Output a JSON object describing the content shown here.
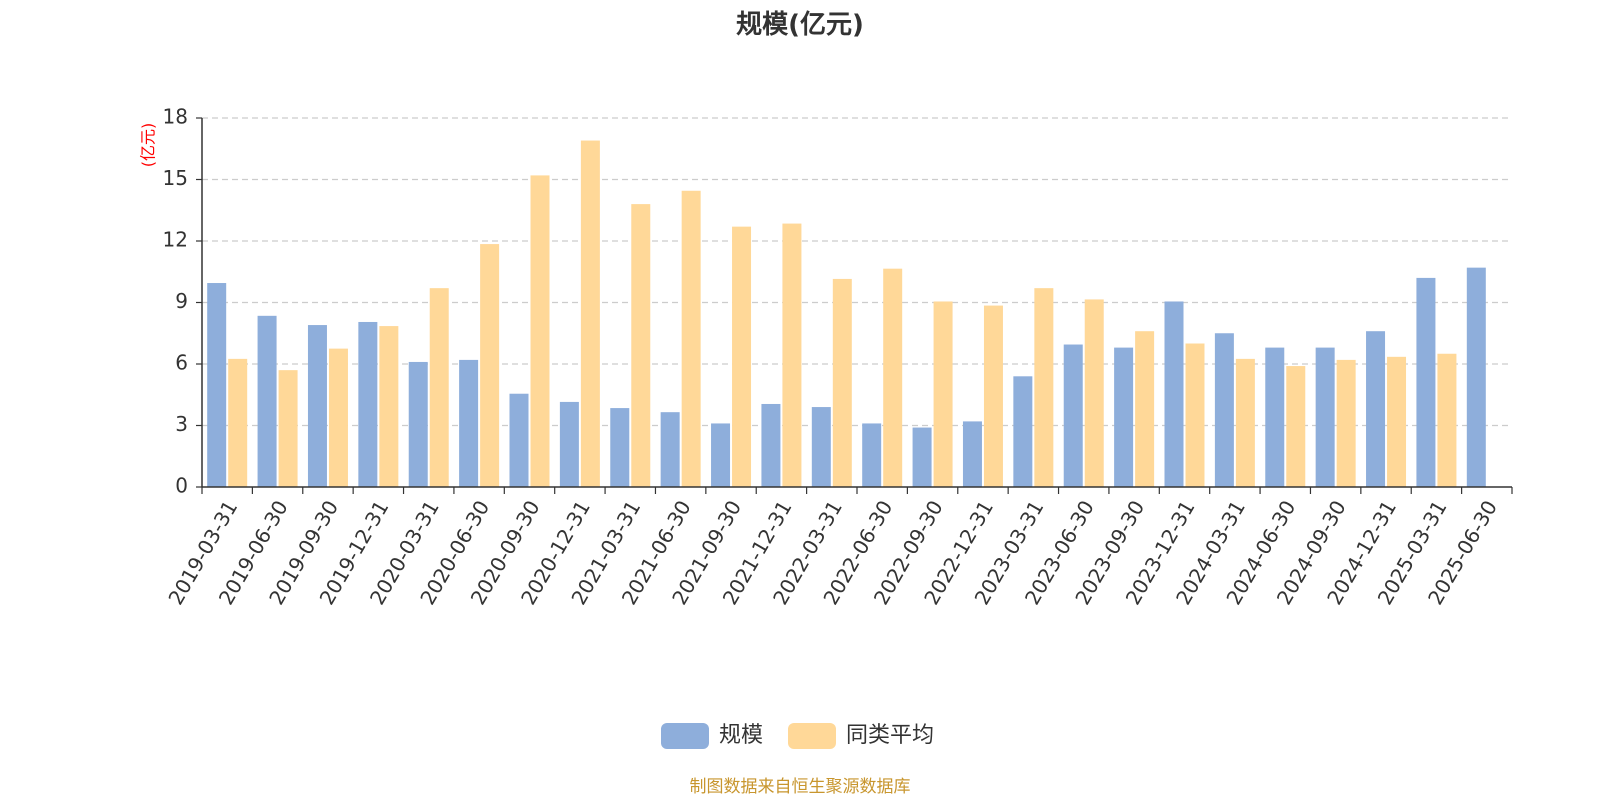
{
  "chart_data": {
    "type": "bar",
    "title": "规模(亿元)",
    "y_unit_label": "(亿元)",
    "ylim": [
      0,
      18
    ],
    "yticks": [
      0,
      3,
      6,
      9,
      12,
      15,
      18
    ],
    "grid": true,
    "legend_position": "bottom",
    "categories": [
      "2019-03-31",
      "2019-06-30",
      "2019-09-30",
      "2019-12-31",
      "2020-03-31",
      "2020-06-30",
      "2020-09-30",
      "2020-12-31",
      "2021-03-31",
      "2021-06-30",
      "2021-09-30",
      "2021-12-31",
      "2022-03-31",
      "2022-06-30",
      "2022-09-30",
      "2022-12-31",
      "2023-03-31",
      "2023-06-30",
      "2023-09-30",
      "2023-12-31",
      "2024-03-31",
      "2024-06-30",
      "2024-09-30",
      "2024-12-31",
      "2025-03-31",
      "2025-06-30"
    ],
    "series": [
      {
        "name": "规模",
        "color": "#8eaedb",
        "values": [
          9.95,
          8.35,
          7.9,
          8.05,
          6.1,
          6.2,
          4.55,
          4.15,
          3.85,
          3.65,
          3.1,
          4.05,
          3.9,
          3.1,
          2.9,
          3.2,
          5.4,
          6.95,
          6.8,
          9.05,
          7.5,
          6.8,
          6.8,
          7.6,
          10.2,
          10.7
        ]
      },
      {
        "name": "同类平均",
        "color": "#ffd898",
        "values": [
          6.25,
          5.7,
          6.75,
          7.85,
          9.7,
          11.85,
          15.2,
          16.9,
          13.8,
          14.45,
          12.7,
          12.85,
          10.15,
          10.65,
          9.05,
          8.85,
          9.7,
          9.15,
          7.6,
          7.0,
          6.25,
          5.9,
          6.2,
          6.35,
          6.5,
          null
        ]
      }
    ]
  },
  "source_note": "制图数据来自恒生聚源数据库",
  "source_color": "#c8962e"
}
